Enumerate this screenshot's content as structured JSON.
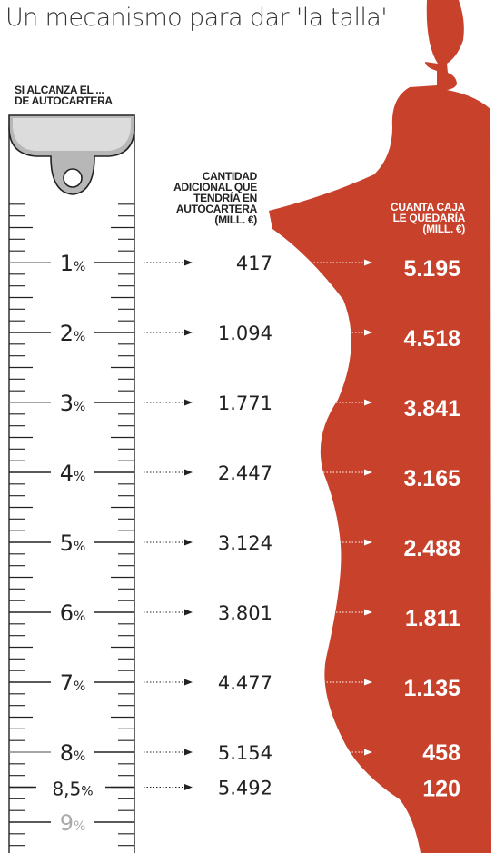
{
  "title": "Un mecanismo para dar 'la talla'",
  "headers": {
    "ruler": [
      "SI ALCANZA EL ...",
      "DE AUTOCARTERA"
    ],
    "additional": [
      "CANTIDAD",
      "ADICIONAL QUE",
      "TENDRÍA EN",
      "AUTOCARTERA",
      "(MILL. €)"
    ],
    "cash": [
      "CUANTA CAJA",
      "LE QUEDARÍA",
      "(MILL. €)"
    ]
  },
  "colors": {
    "mannequin": "#c8412b",
    "ruler_fill": "#dcdcdc",
    "clip_fill": "#b7b7b7",
    "text": "#222222",
    "faded_label": "#aaaaaa",
    "value_on_red": "#ffffff"
  },
  "chart_data": {
    "type": "table",
    "columns": [
      "SI ALCANZA EL ... DE AUTOCARTERA",
      "CANTIDAD ADICIONAL QUE TENDRÍA EN AUTOCARTERA (MILL. €)",
      "CUANTA CAJA LE QUEDARÍA (MILL. €)"
    ],
    "rows": [
      {
        "level": "1",
        "additional": "417",
        "cash": "5.195"
      },
      {
        "level": "2",
        "additional": "1.094",
        "cash": "4.518"
      },
      {
        "level": "3",
        "additional": "1.771",
        "cash": "3.841"
      },
      {
        "level": "4",
        "additional": "2.447",
        "cash": "3.165"
      },
      {
        "level": "5",
        "additional": "3.124",
        "cash": "2.488"
      },
      {
        "level": "6",
        "additional": "3.801",
        "cash": "1.811"
      },
      {
        "level": "7",
        "additional": "4.477",
        "cash": "1.135"
      },
      {
        "level": "8",
        "additional": "5.154",
        "cash": "458"
      },
      {
        "level": "8,5",
        "additional": "5.492",
        "cash": "120"
      }
    ],
    "faded_level": "9",
    "unit_symbol": "%"
  }
}
